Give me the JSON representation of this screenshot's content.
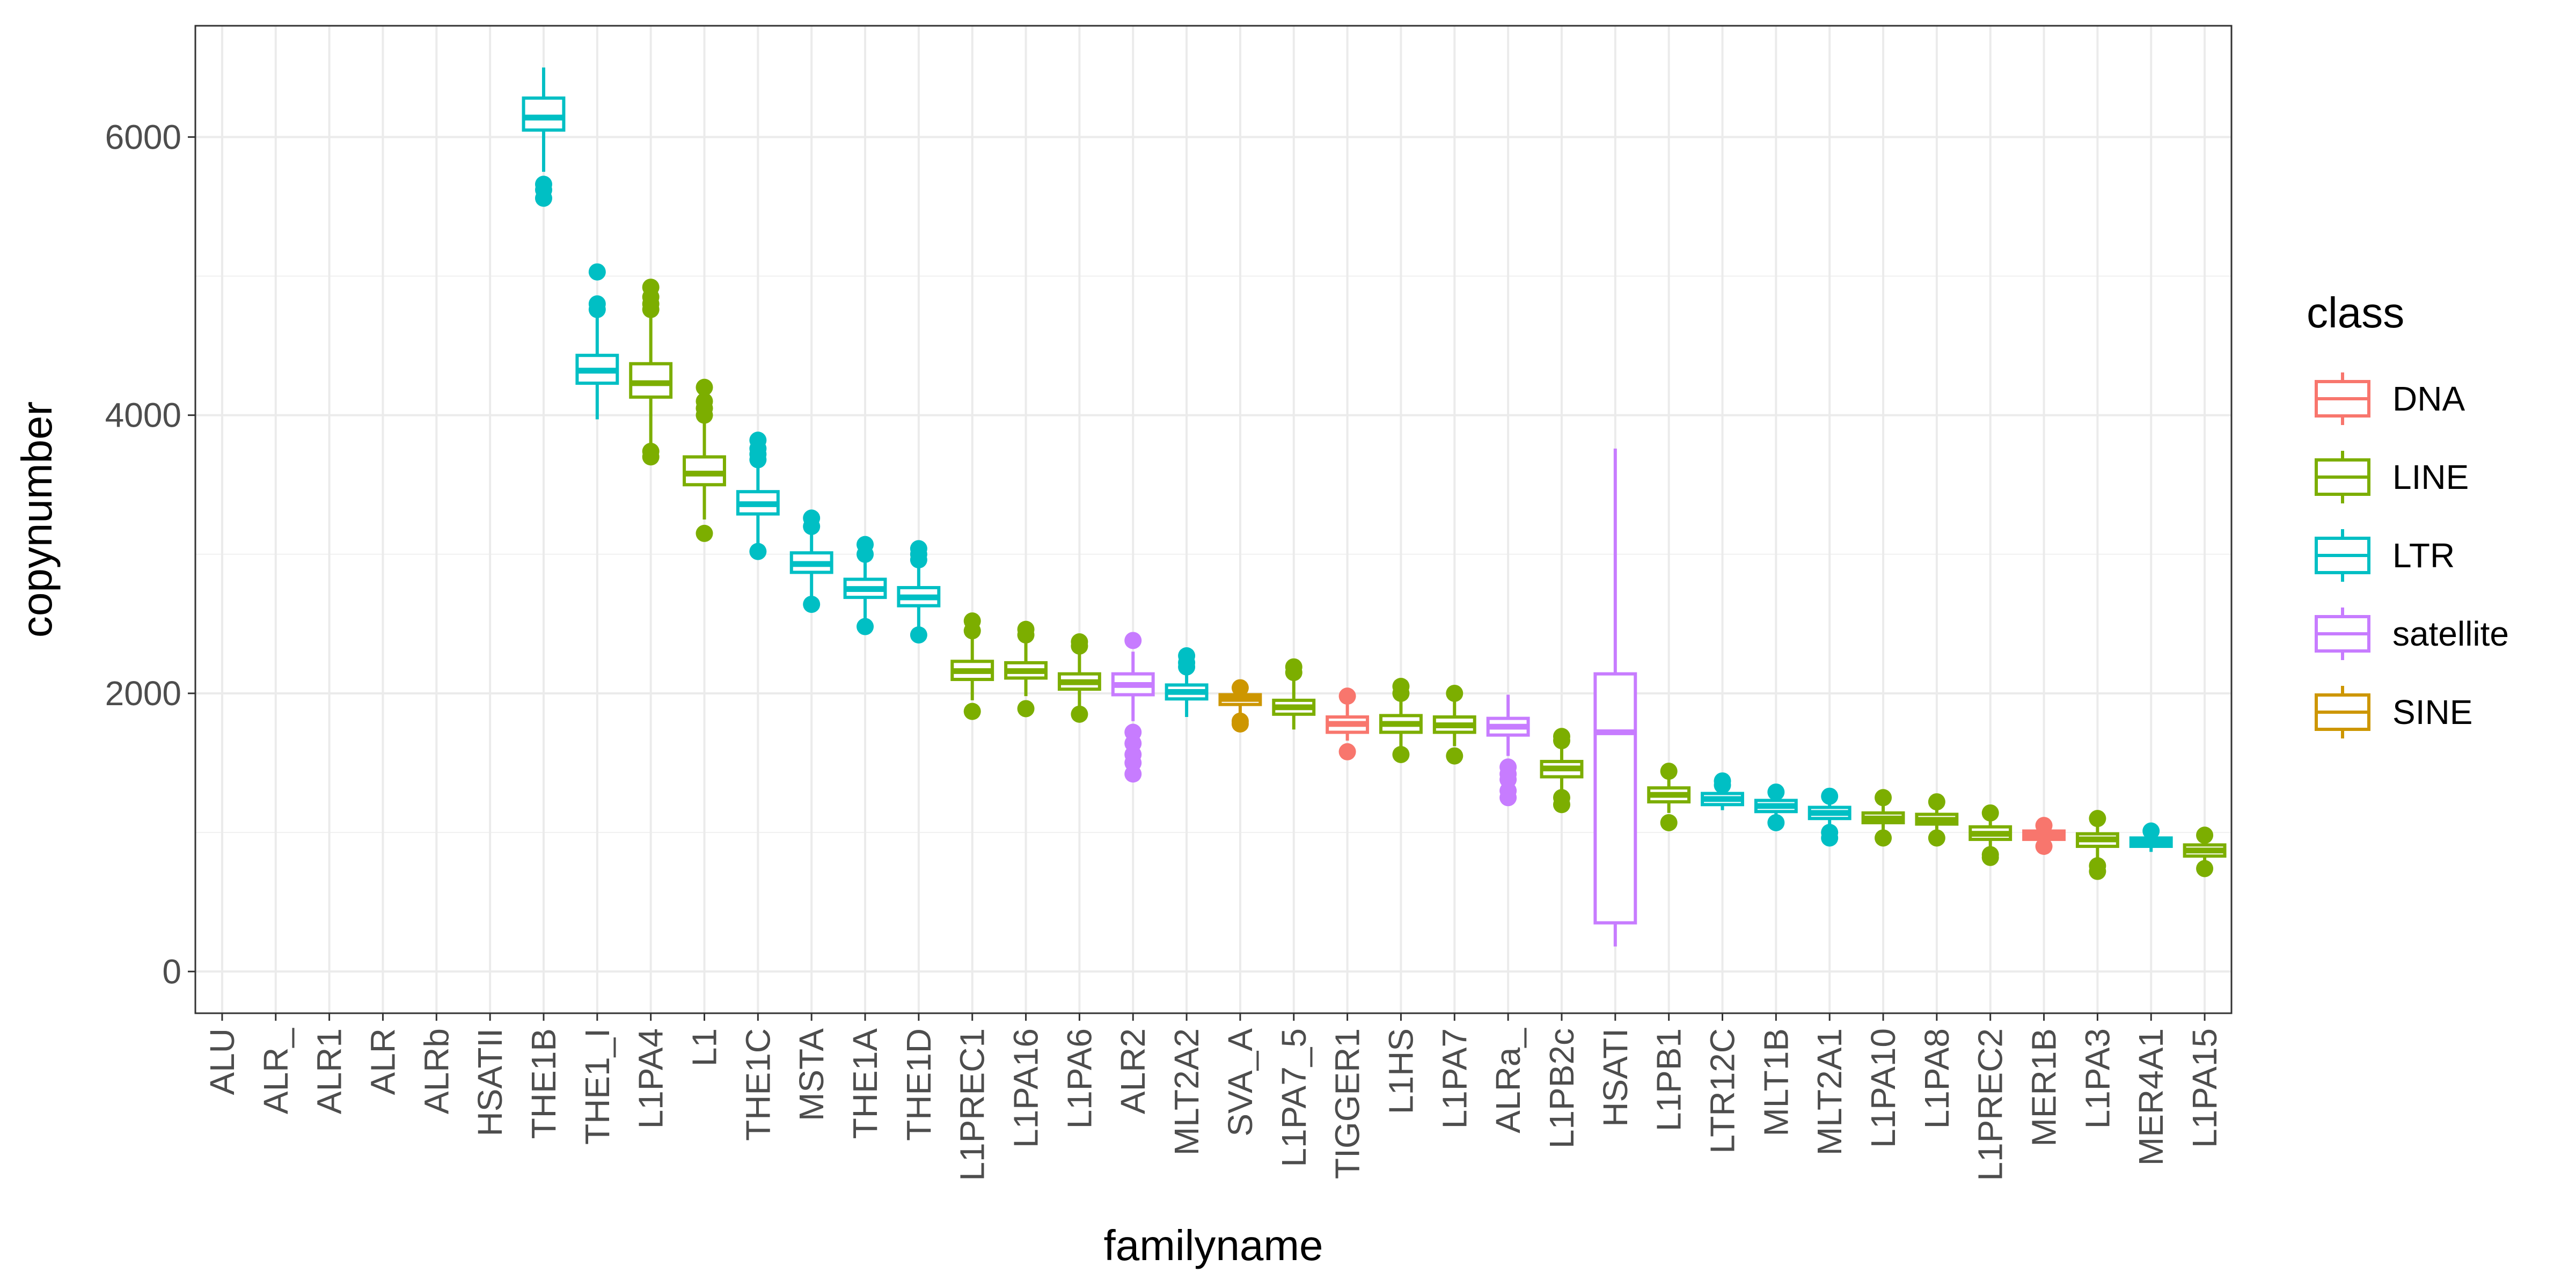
{
  "chart_data": {
    "type": "box",
    "xlabel": "familyname",
    "ylabel": "copynumber",
    "ylim": [
      -300,
      6800
    ],
    "yticks": [
      0,
      2000,
      4000,
      6000
    ],
    "grid": true,
    "legend": {
      "title": "class",
      "placement": "right",
      "entries": [
        {
          "label": "DNA",
          "color": "#F8766D"
        },
        {
          "label": "LINE",
          "color": "#7CAE00"
        },
        {
          "label": "LTR",
          "color": "#00BFC4"
        },
        {
          "label": "satellite",
          "color": "#C77CFF"
        },
        {
          "label": "SINE",
          "color": "#CD9600"
        }
      ]
    },
    "categories": [
      "ALU",
      "ALR_",
      "ALR1",
      "ALR",
      "ALRb",
      "HSATII",
      "THE1B",
      "THE1_I",
      "L1PA4",
      "L1",
      "THE1C",
      "MSTA",
      "THE1A",
      "THE1D",
      "L1PREC1",
      "L1PA16",
      "L1PA6",
      "ALR2",
      "MLT2A2",
      "SVA_A",
      "L1PA7_5",
      "TIGGER1",
      "L1HS",
      "L1PA7",
      "ALRa_",
      "L1PB2c",
      "HSATI",
      "L1PB1",
      "LTR12C",
      "MLT1B",
      "MLT2A1",
      "L1PA10",
      "L1PA8",
      "L1PREC2",
      "MER1B",
      "L1PA3",
      "MER4A1",
      "L1PA15"
    ],
    "boxes": [
      {
        "name": "ALU",
        "class": null
      },
      {
        "name": "ALR_",
        "class": null
      },
      {
        "name": "ALR1",
        "class": null
      },
      {
        "name": "ALR",
        "class": null
      },
      {
        "name": "ALRb",
        "class": null
      },
      {
        "name": "HSATII",
        "class": null
      },
      {
        "name": "THE1B",
        "class": "LTR",
        "min": 5750,
        "q1": 6050,
        "median": 6140,
        "q3": 6280,
        "max": 6500,
        "outliers": [
          5560,
          5620,
          5660
        ]
      },
      {
        "name": "THE1_I",
        "class": "LTR",
        "min": 3970,
        "q1": 4230,
        "median": 4320,
        "q3": 4430,
        "max": 4720,
        "outliers": [
          4760,
          4800,
          5030
        ]
      },
      {
        "name": "L1PA4",
        "class": "LINE",
        "min": 3800,
        "q1": 4130,
        "median": 4230,
        "q3": 4370,
        "max": 4700,
        "outliers": [
          3700,
          3740,
          4760,
          4800,
          4850,
          4920
        ]
      },
      {
        "name": "L1",
        "class": "LINE",
        "min": 3250,
        "q1": 3500,
        "median": 3580,
        "q3": 3700,
        "max": 3950,
        "outliers": [
          3150,
          4000,
          4050,
          4100,
          4200
        ]
      },
      {
        "name": "THE1C",
        "class": "LTR",
        "min": 3050,
        "q1": 3290,
        "median": 3360,
        "q3": 3450,
        "max": 3650,
        "outliers": [
          3020,
          3680,
          3720,
          3760,
          3820
        ]
      },
      {
        "name": "MSTA",
        "class": "LTR",
        "min": 2700,
        "q1": 2870,
        "median": 2930,
        "q3": 3010,
        "max": 3150,
        "outliers": [
          2640,
          3200,
          3260
        ]
      },
      {
        "name": "THE1A",
        "class": "LTR",
        "min": 2530,
        "q1": 2690,
        "median": 2750,
        "q3": 2820,
        "max": 2980,
        "outliers": [
          2480,
          3000,
          3070
        ]
      },
      {
        "name": "THE1D",
        "class": "LTR",
        "min": 2470,
        "q1": 2630,
        "median": 2690,
        "q3": 2760,
        "max": 2920,
        "outliers": [
          2420,
          2960,
          3000,
          3040
        ]
      },
      {
        "name": "L1PREC1",
        "class": "LINE",
        "min": 1950,
        "q1": 2100,
        "median": 2160,
        "q3": 2230,
        "max": 2400,
        "outliers": [
          1870,
          2450,
          2520
        ]
      },
      {
        "name": "L1PA16",
        "class": "LINE",
        "min": 1980,
        "q1": 2110,
        "median": 2160,
        "q3": 2220,
        "max": 2360,
        "outliers": [
          1890,
          2420,
          2460
        ]
      },
      {
        "name": "L1PA6",
        "class": "LINE",
        "min": 1900,
        "q1": 2030,
        "median": 2080,
        "q3": 2140,
        "max": 2300,
        "outliers": [
          1850,
          2340,
          2370
        ]
      },
      {
        "name": "ALR2",
        "class": "satellite",
        "min": 1800,
        "q1": 1990,
        "median": 2060,
        "q3": 2140,
        "max": 2300,
        "outliers": [
          1420,
          1500,
          1560,
          1640,
          1720,
          2380
        ]
      },
      {
        "name": "MLT2A2",
        "class": "LTR",
        "min": 1830,
        "q1": 1960,
        "median": 2010,
        "q3": 2060,
        "max": 2150,
        "outliers": [
          2190,
          2220,
          2270
        ]
      },
      {
        "name": "SVA_A",
        "class": "SINE",
        "min": 1830,
        "q1": 1920,
        "median": 1960,
        "q3": 1990,
        "max": 2020,
        "outliers": [
          1780,
          1800,
          2040
        ]
      },
      {
        "name": "L1PA7_5",
        "class": "LINE",
        "min": 1740,
        "q1": 1850,
        "median": 1900,
        "q3": 1950,
        "max": 2100,
        "outliers": [
          2150,
          2190
        ]
      },
      {
        "name": "TIGGER1",
        "class": "DNA",
        "min": 1660,
        "q1": 1720,
        "median": 1780,
        "q3": 1830,
        "max": 1920,
        "outliers": [
          1580,
          1980
        ]
      },
      {
        "name": "L1HS",
        "class": "LINE",
        "min": 1620,
        "q1": 1720,
        "median": 1780,
        "q3": 1840,
        "max": 1960,
        "outliers": [
          1560,
          2000,
          2050
        ]
      },
      {
        "name": "L1PA7",
        "class": "LINE",
        "min": 1620,
        "q1": 1720,
        "median": 1770,
        "q3": 1830,
        "max": 1950,
        "outliers": [
          1550,
          2000
        ]
      },
      {
        "name": "ALRa_",
        "class": "satellite",
        "min": 1550,
        "q1": 1700,
        "median": 1760,
        "q3": 1820,
        "max": 1990,
        "outliers": [
          1250,
          1300,
          1380,
          1420,
          1470
        ]
      },
      {
        "name": "L1PB2c",
        "class": "LINE",
        "min": 1300,
        "q1": 1400,
        "median": 1460,
        "q3": 1510,
        "max": 1620,
        "outliers": [
          1200,
          1250,
          1660,
          1690
        ]
      },
      {
        "name": "HSATI",
        "class": "satellite",
        "min": 180,
        "q1": 350,
        "median": 1720,
        "q3": 2140,
        "max": 3760,
        "outliers": []
      },
      {
        "name": "L1PB1",
        "class": "LINE",
        "min": 1140,
        "q1": 1220,
        "median": 1270,
        "q3": 1320,
        "max": 1400,
        "outliers": [
          1070,
          1440
        ]
      },
      {
        "name": "LTR12C",
        "class": "LTR",
        "min": 1160,
        "q1": 1200,
        "median": 1240,
        "q3": 1280,
        "max": 1320,
        "outliers": [
          1340,
          1370
        ]
      },
      {
        "name": "MLT1B",
        "class": "LTR",
        "min": 1110,
        "q1": 1150,
        "median": 1190,
        "q3": 1230,
        "max": 1270,
        "outliers": [
          1070,
          1290
        ]
      },
      {
        "name": "MLT2A1",
        "class": "LTR",
        "min": 1030,
        "q1": 1100,
        "median": 1140,
        "q3": 1180,
        "max": 1230,
        "outliers": [
          960,
          1000,
          1260
        ]
      },
      {
        "name": "L1PA10",
        "class": "LINE",
        "min": 1020,
        "q1": 1070,
        "median": 1100,
        "q3": 1140,
        "max": 1200,
        "outliers": [
          960,
          1250
        ]
      },
      {
        "name": "L1PA8",
        "class": "LINE",
        "min": 1020,
        "q1": 1060,
        "median": 1090,
        "q3": 1130,
        "max": 1180,
        "outliers": [
          960,
          1220
        ]
      },
      {
        "name": "L1PREC2",
        "class": "LINE",
        "min": 880,
        "q1": 950,
        "median": 990,
        "q3": 1040,
        "max": 1100,
        "outliers": [
          820,
          840,
          1140
        ]
      },
      {
        "name": "MER1B",
        "class": "DNA",
        "min": 920,
        "q1": 950,
        "median": 980,
        "q3": 1010,
        "max": 1040,
        "outliers": [
          900,
          1050
        ]
      },
      {
        "name": "L1PA3",
        "class": "LINE",
        "min": 800,
        "q1": 900,
        "median": 950,
        "q3": 990,
        "max": 1060,
        "outliers": [
          720,
          760,
          1100
        ]
      },
      {
        "name": "MER4A1",
        "class": "LTR",
        "min": 860,
        "q1": 900,
        "median": 930,
        "q3": 960,
        "max": 990,
        "outliers": [
          1010
        ]
      },
      {
        "name": "L1PA15",
        "class": "LINE",
        "min": 780,
        "q1": 830,
        "median": 870,
        "q3": 910,
        "max": 950,
        "outliers": [
          740,
          980
        ]
      }
    ]
  }
}
